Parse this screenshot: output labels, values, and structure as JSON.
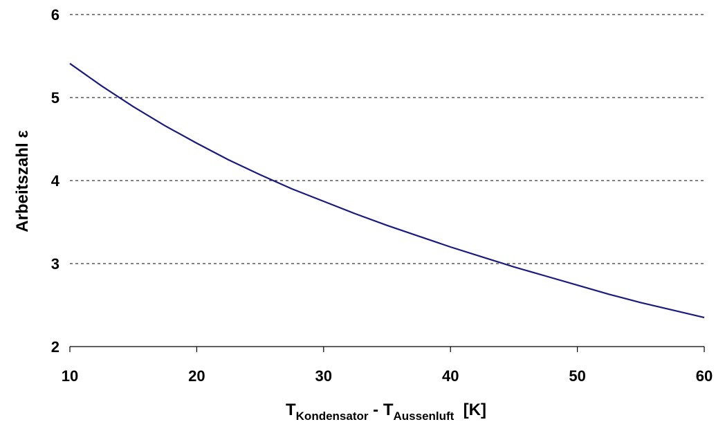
{
  "chart_data": {
    "type": "line",
    "title": "",
    "ylabel": "Arbeitszahl ε",
    "xlabel": {
      "main_1": "T",
      "sub_1": "Kondensator",
      "sep": " - ",
      "main_2": "T",
      "sub_2": "Aussenluft",
      "unit": "  [K]"
    },
    "xlim": [
      10,
      60
    ],
    "ylim": [
      2,
      6
    ],
    "xticks": [
      10,
      20,
      30,
      40,
      50,
      60
    ],
    "yticks": [
      2,
      3,
      4,
      5,
      6
    ],
    "grid": "horizontal dashed",
    "legend": "none",
    "colors": {
      "line": "#1a1a80",
      "axis": "#000000",
      "grid": "#000000"
    },
    "series": [
      {
        "x": [
          10,
          12.5,
          15,
          17.5,
          20,
          22.5,
          25,
          27.5,
          30,
          32.5,
          35,
          37.5,
          40,
          42.5,
          45,
          47.5,
          50,
          52.5,
          55,
          57.5,
          60
        ],
        "y": [
          5.41,
          5.14,
          4.89,
          4.66,
          4.45,
          4.25,
          4.07,
          3.9,
          3.75,
          3.6,
          3.46,
          3.33,
          3.2,
          3.08,
          2.96,
          2.85,
          2.74,
          2.63,
          2.53,
          2.44,
          2.35
        ]
      }
    ]
  }
}
